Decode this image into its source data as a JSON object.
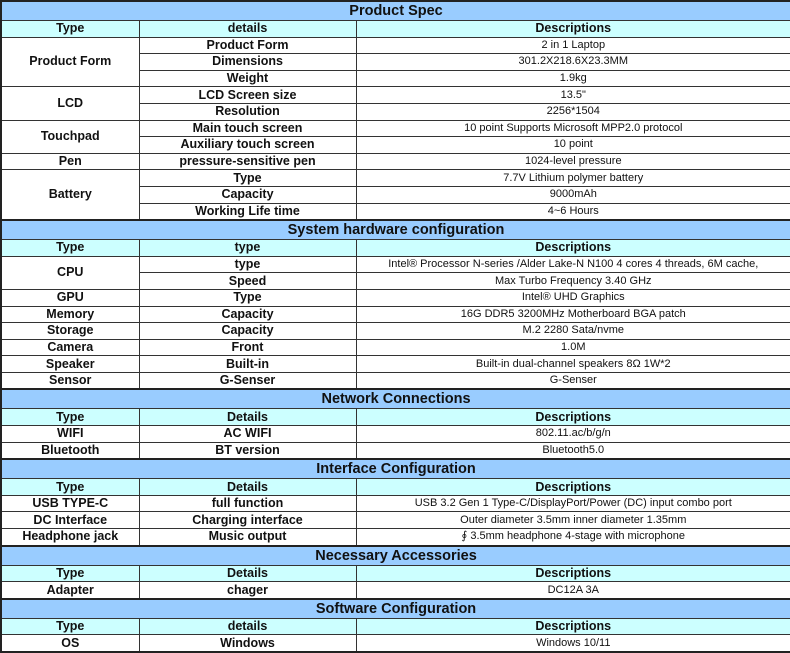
{
  "colors": {
    "section_header": "#99ccff",
    "column_header": "#ccffff",
    "border": "#333333"
  },
  "sections": [
    {
      "title": "Product Spec",
      "headers": [
        "Type",
        "details",
        "Descriptions"
      ],
      "groups": [
        {
          "type": "Product Form",
          "rows": [
            {
              "detail": "Product Form",
              "desc": "2 in 1 Laptop"
            },
            {
              "detail": "Dimensions",
              "desc": "301.2X218.6X23.3MM"
            },
            {
              "detail": "Weight",
              "desc": "1.9kg"
            }
          ]
        },
        {
          "type": "LCD",
          "rows": [
            {
              "detail": "LCD Screen size",
              "desc": "13.5\""
            },
            {
              "detail": "Resolution",
              "desc": "2256*1504"
            }
          ]
        },
        {
          "type": "Touchpad",
          "rows": [
            {
              "detail": "Main touch screen",
              "desc": "10 point Supports Microsoft MPP2.0 protocol"
            },
            {
              "detail": "Auxiliary touch screen",
              "desc": "10 point"
            }
          ]
        },
        {
          "type": "Pen",
          "rows": [
            {
              "detail": "pressure-sensitive pen",
              "desc": "1024-level pressure"
            }
          ]
        },
        {
          "type": "Battery",
          "rows": [
            {
              "detail": "Type",
              "desc": "7.7V Lithium polymer battery"
            },
            {
              "detail": "Capacity",
              "desc": "9000mAh"
            },
            {
              "detail": "Working Life time",
              "desc": "4~6 Hours"
            }
          ]
        }
      ]
    },
    {
      "title": "System hardware configuration",
      "headers": [
        "Type",
        "type",
        "Descriptions"
      ],
      "groups": [
        {
          "type": "CPU",
          "rows": [
            {
              "detail": "type",
              "desc": "Intel® Processor N-series /Alder Lake-N N100  4 cores 4 threads, 6M cache,"
            },
            {
              "detail": "Speed",
              "desc": "Max Turbo Frequency 3.40 GHz"
            }
          ]
        },
        {
          "type": "GPU",
          "rows": [
            {
              "detail": "Type",
              "desc": "Intel® UHD Graphics"
            }
          ]
        },
        {
          "type": "Memory",
          "rows": [
            {
              "detail": "Capacity",
              "desc": "16G DDR5 3200MHz  Motherboard BGA patch"
            }
          ]
        },
        {
          "type": "Storage",
          "rows": [
            {
              "detail": "Capacity",
              "desc": "M.2 2280 Sata/nvme"
            }
          ]
        },
        {
          "type": "Camera",
          "rows": [
            {
              "detail": "Front",
              "desc": "1.0M"
            }
          ]
        },
        {
          "type": "Speaker",
          "rows": [
            {
              "detail": "Built-in",
              "desc": "Built-in dual-channel speakers  8Ω 1W*2"
            }
          ]
        },
        {
          "type": "Sensor",
          "rows": [
            {
              "detail": "G-Senser",
              "desc": "G-Senser"
            }
          ]
        }
      ]
    },
    {
      "title": "Network Connections",
      "headers": [
        "Type",
        "Details",
        "Descriptions"
      ],
      "groups": [
        {
          "type": "WIFI",
          "rows": [
            {
              "detail": "AC WIFI",
              "desc": "802.11.ac/b/g/n"
            }
          ]
        },
        {
          "type": "Bluetooth",
          "rows": [
            {
              "detail": "BT version",
              "desc": "Bluetooth5.0"
            }
          ]
        }
      ]
    },
    {
      "title": "Interface Configuration",
      "headers": [
        "Type",
        "Details",
        "Descriptions"
      ],
      "groups": [
        {
          "type": "USB TYPE-C",
          "rows": [
            {
              "detail": "full function",
              "desc": "USB 3.2 Gen 1 Type-C/DisplayPort/Power (DC) input combo port"
            }
          ]
        },
        {
          "type": "DC Interface",
          "rows": [
            {
              "detail": "Charging interface",
              "desc": "Outer diameter 3.5mm inner diameter 1.35mm"
            }
          ]
        },
        {
          "type": "Headphone jack",
          "rows": [
            {
              "detail": "Music output",
              "desc": "∮ 3.5mm headphone 4-stage with microphone"
            }
          ]
        }
      ]
    },
    {
      "title": "Necessary Accessories",
      "headers": [
        "Type",
        "Details",
        "Descriptions"
      ],
      "groups": [
        {
          "type": "Adapter",
          "rows": [
            {
              "detail": "chager",
              "desc": "DC12A  3A"
            }
          ]
        }
      ]
    },
    {
      "title": "Software Configuration",
      "headers": [
        "Type",
        "details",
        "Descriptions"
      ],
      "groups": [
        {
          "type": "OS",
          "rows": [
            {
              "detail": "Windows",
              "desc": "Windows 10/11"
            }
          ]
        }
      ]
    }
  ]
}
